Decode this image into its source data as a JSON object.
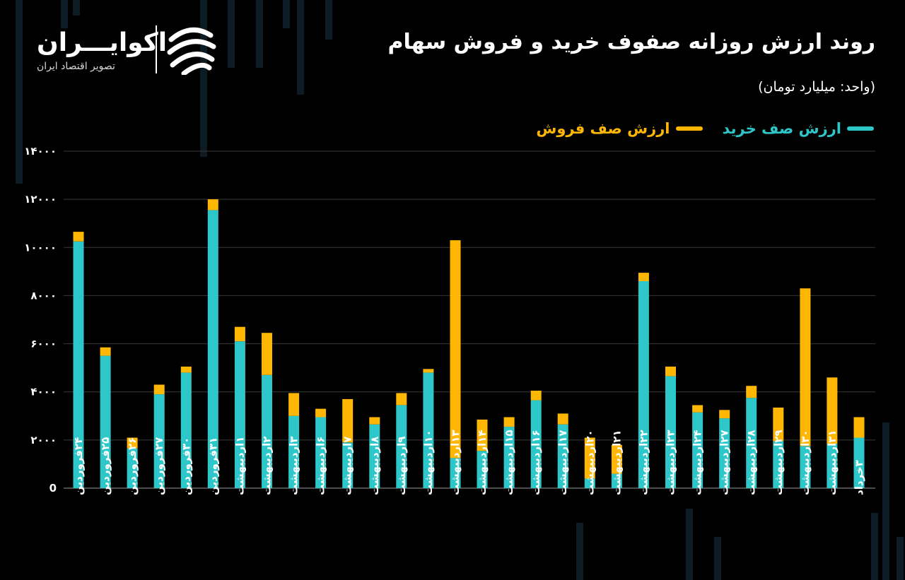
{
  "header": {
    "title": "روند ارزش روزانه صفوف خرید و فروش سهام",
    "unit": "(واحد: میلیارد تومان)"
  },
  "logo": {
    "name": "اکوایـــران",
    "tagline": "تصویر اقتصاد ایران"
  },
  "colors": {
    "buy": "#2ec7c9",
    "sell": "#ffb703",
    "background": "#000000",
    "grid": "#3a3a3a"
  },
  "chart_data": {
    "type": "bar",
    "stacked": true,
    "title": "روند ارزش روزانه صفوف خرید و فروش سهام",
    "ylabel": "(واحد: میلیارد تومان)",
    "xlabel": "",
    "ylim": [
      0,
      14000
    ],
    "yticks": [
      0,
      2000,
      4000,
      6000,
      8000,
      10000,
      12000,
      14000
    ],
    "ytick_labels": [
      "0",
      "۲۰۰۰",
      "۴۰۰۰",
      "۶۰۰۰",
      "۸۰۰۰",
      "۱۰۰۰۰",
      "۱۲۰۰۰",
      "۱۴۰۰۰"
    ],
    "grid": true,
    "legend_position": "top-right",
    "categories": [
      "۲۴فروردین",
      "۲۵فروردین",
      "۲۶فروردین",
      "۲۷فروردین",
      "۳۰فروردین",
      "۳۱فروردین",
      "۱اردیبهشت",
      "۲اردیبهشت",
      "۳اردیبهشت",
      "۶اردیبهشت",
      "۷اردیبهشت",
      "۸اردیبهشت",
      "۹اردیبهشت",
      "۱۰اردیبهشت",
      "۱۳اردیبهشت",
      "۱۴اردیبهشت",
      "۱۵اردیبهشت",
      "۱۶اردیبهشت",
      "۱۷اردیبهشت",
      "۲۰اردیبهشت",
      "۲۱اردیبهشت",
      "۲۲اردیبهشت",
      "۲۳اردیبهشت",
      "۲۴اردیبهشت",
      "۲۷اردیبهشت",
      "۲۸اردیبهشت",
      "۲۹اردیبهشت",
      "۳۰اردیبهشت",
      "۳۱اردیبهشت",
      "۳خرداد"
    ],
    "series": [
      {
        "name": "ارزش صف خرید",
        "color": "#2ec7c9",
        "values": [
          10250,
          5500,
          1650,
          3900,
          4800,
          11550,
          6100,
          4700,
          3000,
          2950,
          1900,
          2650,
          3450,
          4800,
          1250,
          1550,
          2550,
          3650,
          2650,
          400,
          600,
          8600,
          4650,
          3150,
          2900,
          3750,
          1950,
          1750,
          1850,
          2100
        ]
      },
      {
        "name": "ارزش صف فروش",
        "color": "#ffb703",
        "values": [
          400,
          350,
          450,
          400,
          250,
          450,
          600,
          1750,
          950,
          350,
          1800,
          300,
          500,
          150,
          9050,
          1300,
          400,
          400,
          450,
          1700,
          1200,
          350,
          400,
          300,
          350,
          500,
          1400,
          6550,
          2750,
          850
        ]
      }
    ]
  }
}
